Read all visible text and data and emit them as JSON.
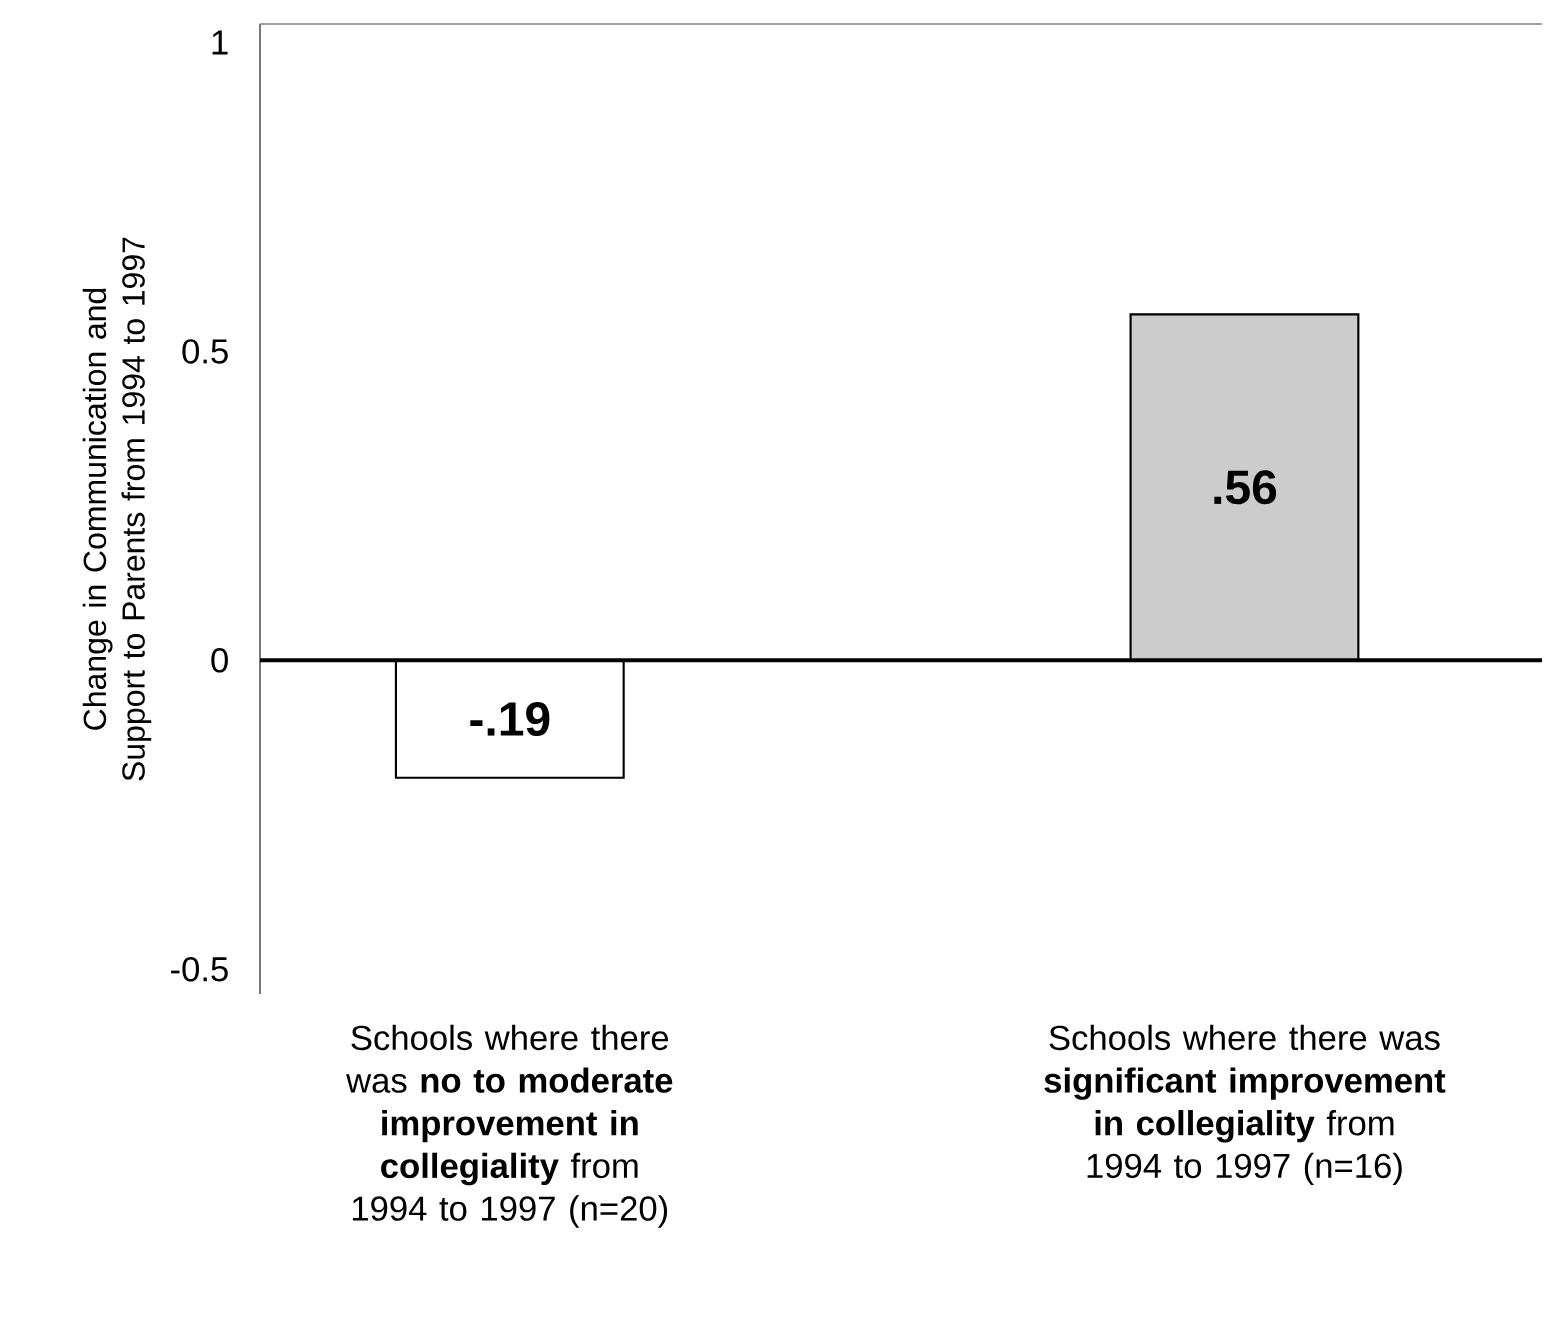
{
  "chart_data": {
    "type": "bar",
    "ylabel": "Change in Communication and Support to Parents from 1994 to 1997",
    "categories": [
      "Schools where there was **no to moderate improvement in collegiality** from 1994 to 1997 (n=20)",
      "Schools where there was **significant improvement in collegiality** from 1994 to 1997 (n=16)"
    ],
    "values": [
      -0.19,
      0.56
    ],
    "colors": [
      "#ffffff",
      "#cccccc"
    ],
    "value_labels": [
      "-.19",
      ".56"
    ],
    "ylim": [
      -0.54,
      1.03
    ],
    "yticks": [
      -0.5,
      0,
      0.5,
      1
    ],
    "ref_lines": [
      {
        "axis": "y",
        "value": 0,
        "color": "#000000"
      }
    ]
  }
}
